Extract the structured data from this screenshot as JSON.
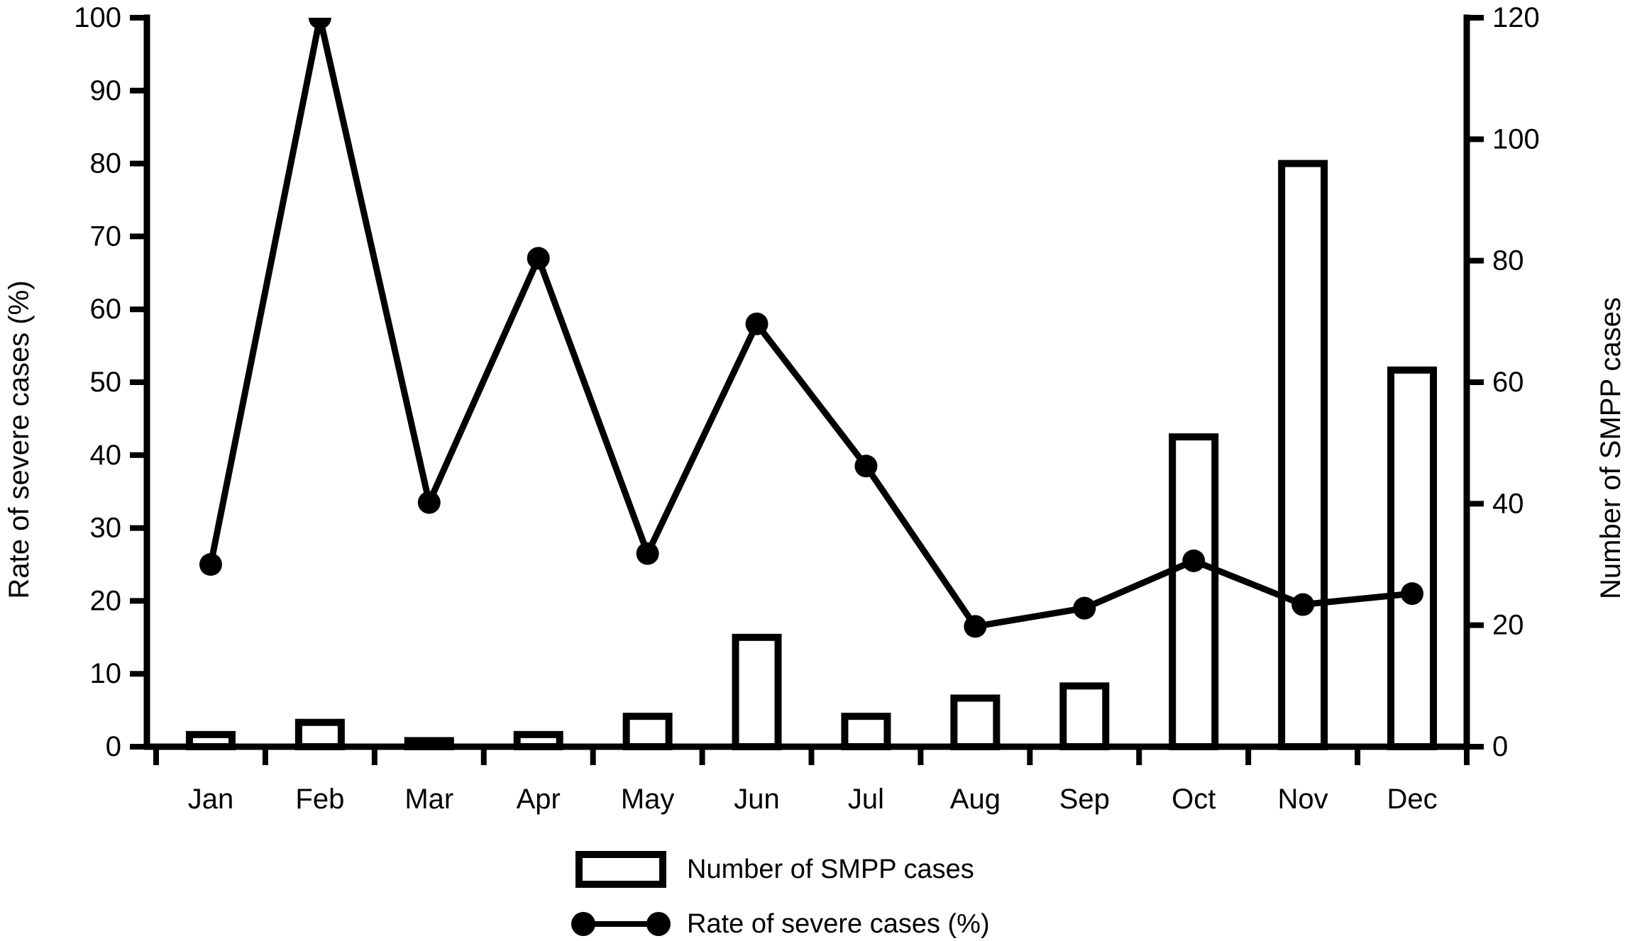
{
  "figure": {
    "background": "#ffffff",
    "ink": "#000000"
  },
  "chart_data": {
    "type": "bar+line combo",
    "categories": [
      "Jan",
      "Feb",
      "Mar",
      "Apr",
      "May",
      "Jun",
      "Jul",
      "Aug",
      "Sep",
      "Oct",
      "Nov",
      "Dec"
    ],
    "series": [
      {
        "name": "Number of SMPP cases",
        "type": "bar",
        "axis": "right",
        "values": [
          2,
          4,
          1,
          2,
          5,
          18,
          5,
          8,
          10,
          51,
          96,
          62
        ]
      },
      {
        "name": "Rate of severe cases (%)",
        "type": "line",
        "axis": "left",
        "values": [
          25,
          100,
          33.5,
          67,
          26.5,
          58,
          38.5,
          16.5,
          19,
          25.5,
          19.5,
          21
        ]
      }
    ],
    "left_axis": {
      "label": "Rate of severe cases (%)",
      "min": 0,
      "max": 100,
      "tick_step": 10,
      "ticks": [
        0,
        10,
        20,
        30,
        40,
        50,
        60,
        70,
        80,
        90,
        100
      ]
    },
    "right_axis": {
      "label": "Number of SMPP cases",
      "min": 0,
      "max": 120,
      "tick_step": 20,
      "ticks": [
        0,
        20,
        40,
        60,
        80,
        100,
        120
      ]
    },
    "x_axis": {
      "label": ""
    },
    "legend": [
      {
        "swatch": "bar",
        "label": "Number of SMPP cases"
      },
      {
        "swatch": "line",
        "label": "Rate of severe cases (%)"
      }
    ],
    "grid": false,
    "legend_position": "bottom-center",
    "bar_fill": "#ffffff",
    "bar_stroke": "#000000",
    "line_color": "#000000",
    "marker": "filled-circle"
  }
}
